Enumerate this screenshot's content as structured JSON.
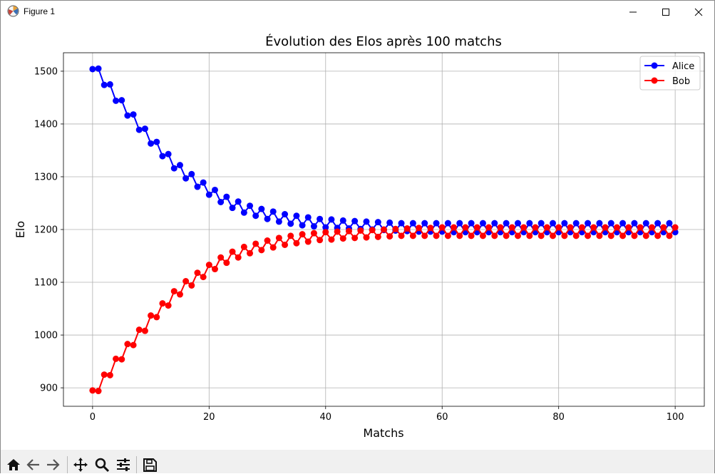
{
  "window": {
    "title": "Figure 1",
    "controls": [
      "minimize",
      "maximize",
      "close"
    ]
  },
  "toolbar": {
    "buttons": [
      "home-icon",
      "back-icon",
      "forward-icon",
      "pan-icon",
      "zoom-icon",
      "configure-subplots-icon",
      "save-icon"
    ]
  },
  "chart_data": {
    "type": "line",
    "title": "Évolution des Elos après 100 matchs",
    "xlabel": "Matchs",
    "ylabel": "Elo",
    "xlim": [
      -5,
      105
    ],
    "ylim": [
      865,
      1535
    ],
    "xticks": [
      0,
      20,
      40,
      60,
      80,
      100
    ],
    "yticks": [
      900,
      1000,
      1100,
      1200,
      1300,
      1400,
      1500
    ],
    "grid": true,
    "legend": "top-right",
    "marker": "circle",
    "series": [
      {
        "name": "Alice",
        "color": "#0000ff",
        "values": [
          1504,
          1505,
          1474,
          1475,
          1444,
          1445,
          1416,
          1418,
          1389,
          1391,
          1363,
          1366,
          1339,
          1343,
          1316,
          1322,
          1297,
          1305,
          1281,
          1289,
          1266,
          1275,
          1252,
          1262,
          1241,
          1253,
          1232,
          1245,
          1226,
          1239,
          1220,
          1234,
          1215,
          1229,
          1211,
          1226,
          1208,
          1223,
          1206,
          1220,
          1204,
          1219,
          1203,
          1217,
          1202,
          1216,
          1201,
          1215,
          1200,
          1214,
          1199,
          1213,
          1198,
          1212,
          1197,
          1212,
          1196,
          1212,
          1196,
          1212,
          1196,
          1212,
          1195,
          1212,
          1195,
          1212,
          1195,
          1212,
          1195,
          1212,
          1195,
          1212,
          1195,
          1212,
          1195,
          1212,
          1195,
          1212,
          1195,
          1212,
          1195,
          1212,
          1195,
          1212,
          1195,
          1212,
          1195,
          1212,
          1195,
          1212,
          1195,
          1212,
          1195,
          1212,
          1195,
          1212,
          1195,
          1212,
          1195,
          1212,
          1195
        ]
      },
      {
        "name": "Bob",
        "color": "#ff0000",
        "values": [
          895,
          894,
          925,
          924,
          955,
          954,
          983,
          981,
          1010,
          1008,
          1037,
          1034,
          1060,
          1056,
          1083,
          1077,
          1102,
          1094,
          1118,
          1110,
          1133,
          1125,
          1147,
          1137,
          1158,
          1147,
          1167,
          1155,
          1173,
          1161,
          1179,
          1166,
          1184,
          1171,
          1188,
          1174,
          1191,
          1177,
          1193,
          1180,
          1195,
          1181,
          1196,
          1183,
          1197,
          1184,
          1198,
          1185,
          1199,
          1186,
          1200,
          1187,
          1201,
          1188,
          1202,
          1188,
          1203,
          1188,
          1203,
          1188,
          1204,
          1188,
          1204,
          1188,
          1204,
          1188,
          1204,
          1188,
          1204,
          1188,
          1204,
          1188,
          1204,
          1188,
          1204,
          1188,
          1204,
          1188,
          1204,
          1188,
          1204,
          1188,
          1204,
          1188,
          1204,
          1188,
          1204,
          1188,
          1204,
          1188,
          1204,
          1188,
          1204,
          1188,
          1204,
          1188,
          1204,
          1188,
          1204,
          1188,
          1204
        ]
      }
    ]
  }
}
